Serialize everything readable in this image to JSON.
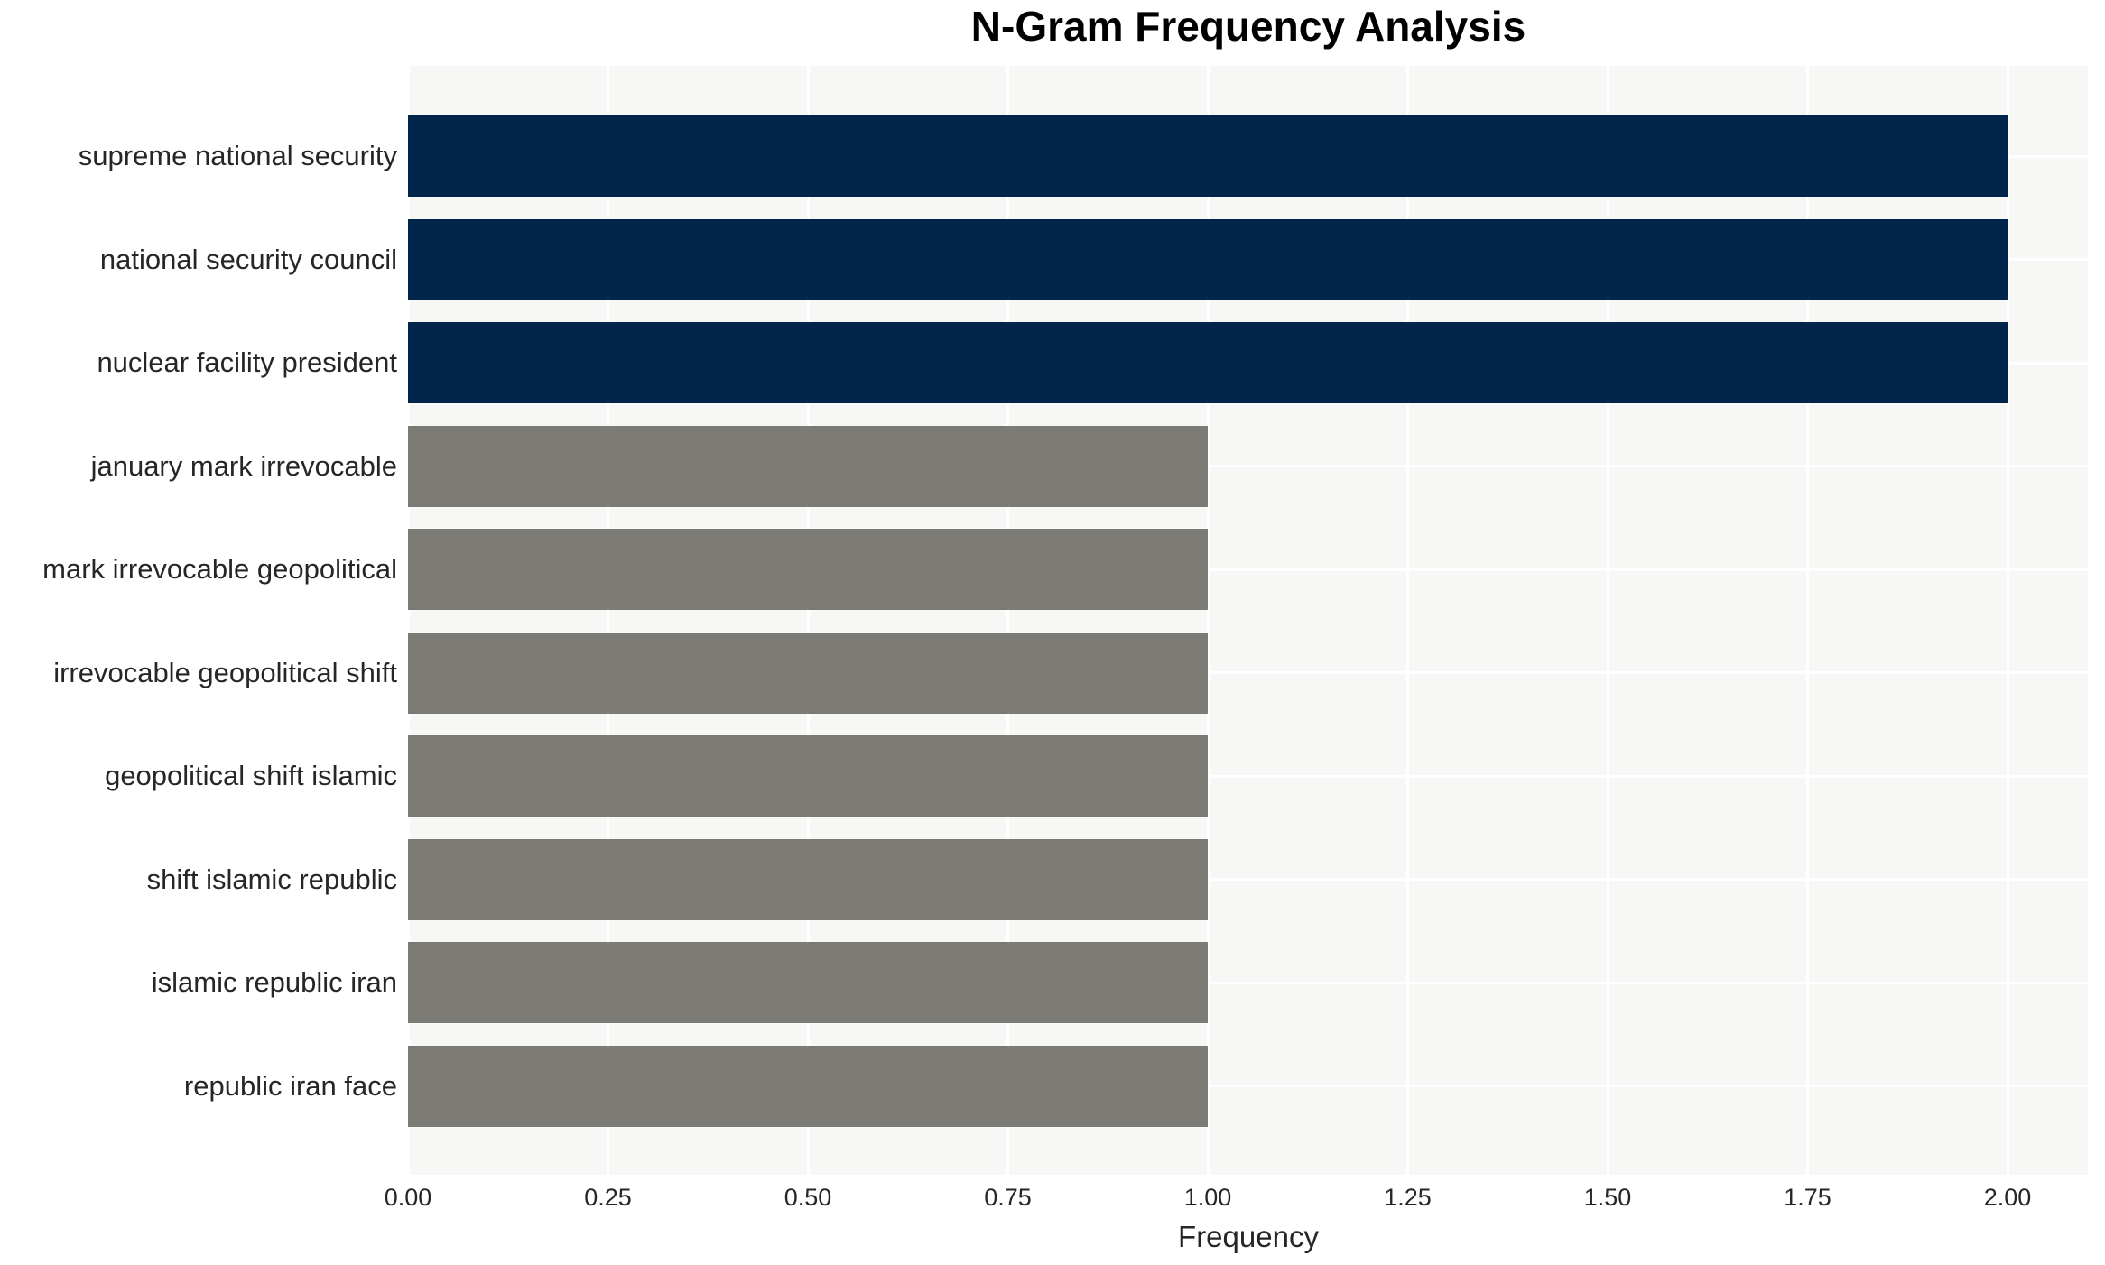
{
  "chart_data": {
    "type": "bar",
    "orientation": "horizontal",
    "title": "N-Gram Frequency Analysis",
    "xlabel": "Frequency",
    "ylabel": "",
    "categories": [
      "supreme national security",
      "national security council",
      "nuclear facility president",
      "january mark irrevocable",
      "mark irrevocable geopolitical",
      "irrevocable geopolitical shift",
      "geopolitical shift islamic",
      "shift islamic republic",
      "islamic republic iran",
      "republic iran face"
    ],
    "values": [
      2,
      2,
      2,
      1,
      1,
      1,
      1,
      1,
      1,
      1
    ],
    "bar_colors": [
      "#02254C",
      "#02254C",
      "#02254C",
      "#7B7A74",
      "#7B7A74",
      "#7B7A74",
      "#7B7A74",
      "#7B7A74",
      "#7B7A74",
      "#7B7A74"
    ],
    "x_ticks": [
      {
        "value": 0.0,
        "label": "0.00"
      },
      {
        "value": 0.25,
        "label": "0.25"
      },
      {
        "value": 0.5,
        "label": "0.50"
      },
      {
        "value": 0.75,
        "label": "0.75"
      },
      {
        "value": 1.0,
        "label": "1.00"
      },
      {
        "value": 1.25,
        "label": "1.25"
      },
      {
        "value": 1.5,
        "label": "1.50"
      },
      {
        "value": 1.75,
        "label": "1.75"
      },
      {
        "value": 2.0,
        "label": "2.00"
      }
    ],
    "xlim": [
      0,
      2.1
    ],
    "grid": true,
    "legend_position": "none",
    "plot_background": "#F7F7F6",
    "gridline_color": "#FFFFFF",
    "title_color": "#000000",
    "tick_label_color": "#262626"
  }
}
